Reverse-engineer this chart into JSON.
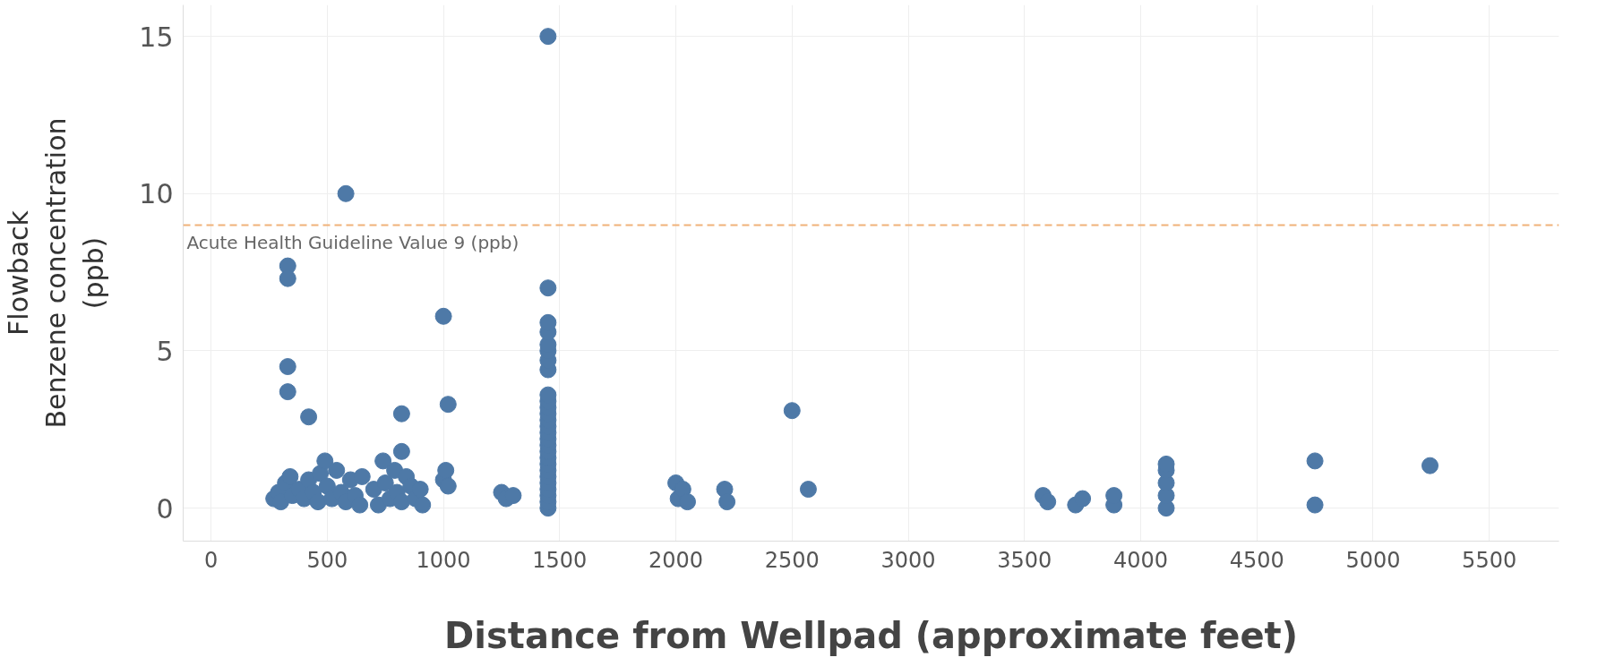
{
  "chart_data": {
    "type": "scatter",
    "xlabel": "Distance from Wellpad (approximate feet)",
    "ylabel": "Flowback\nBenzene concentration\n(ppb)",
    "xlim": [
      -120,
      5800
    ],
    "ylim": [
      -1.05,
      16
    ],
    "xticks": [
      0,
      500,
      1000,
      1500,
      2000,
      2500,
      3000,
      3500,
      4000,
      4500,
      5000,
      5500
    ],
    "yticks": [
      0,
      5,
      10,
      15
    ],
    "grid": true,
    "marker": "circle",
    "ref_lines": [
      {
        "axis": "y",
        "value": 9,
        "label": "Acute Health Guideline Value 9 (ppb)",
        "color": "#f0b27a",
        "line_style": "dashed"
      }
    ],
    "series": [
      {
        "color": "#4e79a7",
        "x": [
          1450,
          580,
          330,
          330,
          330,
          330,
          420,
          1000,
          1020,
          820,
          820,
          2500,
          2570,
          4750,
          4750,
          5245,
          270,
          290,
          300,
          320,
          340,
          350,
          380,
          400,
          420,
          440,
          460,
          470,
          490,
          500,
          520,
          540,
          560,
          580,
          600,
          620,
          640,
          650,
          700,
          720,
          740,
          750,
          770,
          790,
          800,
          820,
          840,
          860,
          880,
          900,
          910,
          1000,
          1010,
          1020,
          1250,
          1270,
          1300,
          2000,
          2010,
          2030,
          2050,
          2210,
          2220,
          3580,
          3600,
          3720,
          3750,
          3885,
          3885,
          4110,
          4110,
          4110,
          4110,
          4110,
          1450,
          1450,
          1450,
          1450,
          1450,
          1450,
          1450,
          1450,
          1450,
          1450,
          1450,
          1450,
          1450,
          1450,
          1450,
          1450,
          1450,
          1450,
          1450,
          1450,
          1450,
          1450,
          1450,
          1450,
          1450,
          1450
        ],
        "values": [
          15,
          10,
          7.7,
          7.3,
          4.5,
          3.7,
          2.9,
          6.1,
          3.3,
          3.0,
          1.8,
          3.1,
          0.6,
          1.5,
          0.1,
          1.35,
          0.3,
          0.5,
          0.2,
          0.8,
          1.0,
          0.4,
          0.6,
          0.3,
          0.9,
          0.5,
          0.2,
          1.1,
          1.5,
          0.7,
          0.3,
          1.2,
          0.5,
          0.2,
          0.9,
          0.4,
          0.1,
          1.0,
          0.6,
          0.1,
          1.5,
          0.8,
          0.3,
          1.2,
          0.5,
          0.2,
          1.0,
          0.7,
          0.3,
          0.6,
          0.1,
          0.9,
          1.2,
          0.7,
          0.5,
          0.3,
          0.4,
          0.8,
          0.3,
          0.6,
          0.2,
          0.6,
          0.2,
          0.4,
          0.2,
          0.1,
          0.3,
          0.1,
          0.4,
          0.0,
          0.4,
          0.8,
          1.2,
          1.4,
          0.0,
          0.2,
          0.4,
          0.6,
          0.8,
          1.0,
          1.2,
          1.4,
          1.6,
          1.8,
          2.0,
          2.2,
          2.4,
          2.6,
          2.8,
          3.0,
          3.2,
          3.4,
          3.6,
          4.4,
          4.7,
          5.0,
          5.2,
          5.6,
          5.9,
          7.0
        ]
      }
    ]
  }
}
